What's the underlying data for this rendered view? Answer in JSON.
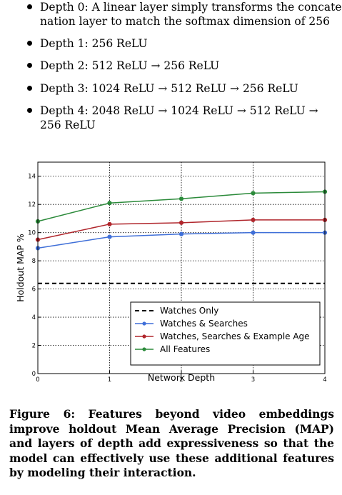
{
  "bullets": [
    {
      "lines": [
        "Depth 0: A linear layer simply transforms the concate-",
        "nation layer to match the softmax dimension of 256"
      ]
    },
    {
      "lines": [
        "Depth 1: 256 ReLU"
      ]
    },
    {
      "lines": [
        "Depth 2: 512 ReLU → 256 ReLU"
      ]
    },
    {
      "lines": [
        "Depth 3: 1024 ReLU → 512 ReLU → 256 ReLU"
      ]
    },
    {
      "lines": [
        "Depth 4: 2048 ReLU → 1024 ReLU → 512 ReLU →",
        "256 ReLU"
      ]
    }
  ],
  "chart_data": {
    "type": "line",
    "title": "",
    "xlabel": "Network Depth",
    "ylabel": "Holdout MAP %",
    "x": [
      0,
      1,
      2,
      3,
      4
    ],
    "xticks": [
      "0",
      "1",
      "2",
      "3",
      "4"
    ],
    "yticks": [
      "0",
      "2",
      "4",
      "6",
      "8",
      "10",
      "12",
      "14"
    ],
    "xlim": [
      0,
      4
    ],
    "ylim": [
      0,
      15
    ],
    "grid": true,
    "legend_position": "lower-right",
    "series": [
      {
        "name": "Watches Only",
        "values": [
          6.4,
          6.4,
          6.4,
          6.4,
          6.4
        ],
        "color": "#000000",
        "style": "dashed",
        "markers": false
      },
      {
        "name": "Watches & Searches",
        "values": [
          8.9,
          9.7,
          9.9,
          10.0,
          10.0
        ],
        "color": "#3f6fd8",
        "style": "solid",
        "markers": true
      },
      {
        "name": "Watches, Searches & Example Age",
        "values": [
          9.5,
          10.6,
          10.7,
          10.9,
          10.9
        ],
        "color": "#b0262c",
        "style": "solid",
        "markers": true
      },
      {
        "name": "All Features",
        "values": [
          10.8,
          12.1,
          12.4,
          12.8,
          12.9
        ],
        "color": "#2b8a3a",
        "style": "solid",
        "markers": true
      }
    ]
  },
  "caption": "Figure 6: Features beyond video embeddings improve holdout Mean Average Precision (MAP) and layers of depth add expressiveness so that the model can effectively use these additional features by modeling their interaction."
}
